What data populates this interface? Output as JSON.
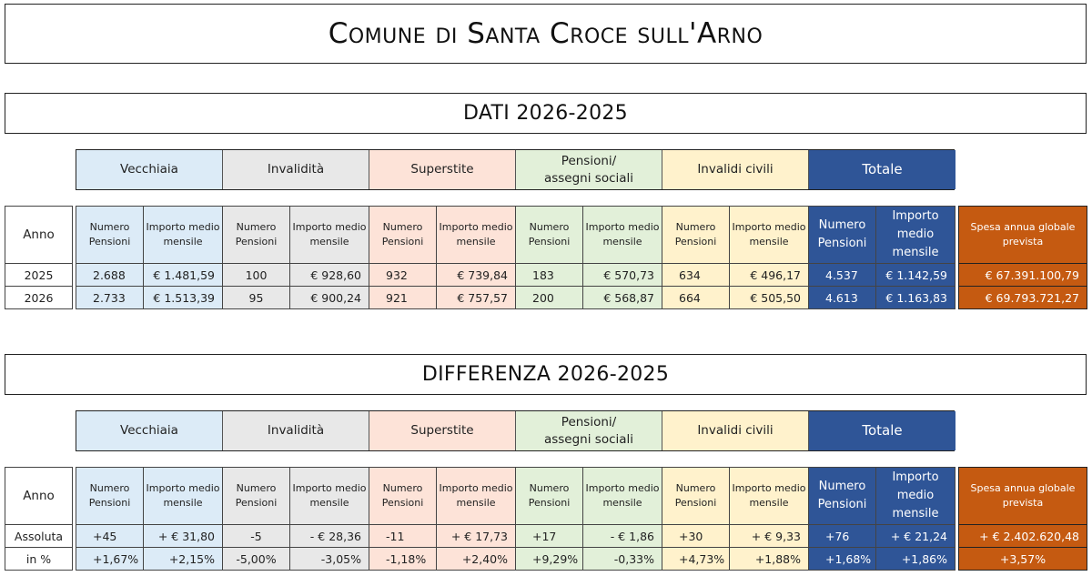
{
  "title": "Comune di Santa Croce sull'Arno",
  "sections": [
    {
      "title": "DATI 2026-2025",
      "categories": [
        "Vecchiaia",
        "Invalidità",
        "Superstite",
        "Pensioni/ assegni sociali",
        "Invalidi civili",
        "Totale"
      ],
      "headers": {
        "anno": "Anno",
        "numero": "Numero Pensioni",
        "importo": "Importo medio mensile",
        "spesa": "Spesa annua globale prevista"
      },
      "rows": [
        {
          "label": "2025",
          "values": [
            "2.688",
            "€ 1.481,59",
            "100",
            "€ 928,60",
            "932",
            "€ 739,84",
            "183",
            "€ 570,73",
            "634",
            "€ 496,17",
            "4.537",
            "€ 1.142,59"
          ],
          "spesa": "€ 67.391.100,79"
        },
        {
          "label": "2026",
          "values": [
            "2.733",
            "€ 1.513,39",
            "95",
            "€ 900,24",
            "921",
            "€ 757,57",
            "200",
            "€ 568,87",
            "664",
            "€ 505,50",
            "4.613",
            "€ 1.163,83"
          ],
          "spesa": "€ 69.793.721,27"
        }
      ]
    },
    {
      "title": "DIFFERENZA 2026-2025",
      "categories": [
        "Vecchiaia",
        "Invalidità",
        "Superstite",
        "Pensioni/ assegni sociali",
        "Invalidi civili",
        "Totale"
      ],
      "headers": {
        "anno": "Anno",
        "numero": "Numero Pensioni",
        "importo": "Importo medio mensile",
        "spesa": "Spesa annua globale prevista"
      },
      "rows": [
        {
          "label": "Assoluta",
          "values": [
            "+45",
            "+ € 31,80",
            "-5",
            "- € 28,36",
            "-11",
            "+ € 17,73",
            "+17",
            "- € 1,86",
            "+30",
            "+ € 9,33",
            "+76",
            "+ € 21,24"
          ],
          "spesa": "+ € 2.402.620,48"
        },
        {
          "label": "in %",
          "values": [
            "+1,67%",
            "+2,15%",
            "-5,00%",
            "-3,05%",
            "-1,18%",
            "+2,40%",
            "+9,29%",
            "-0,33%",
            "+4,73%",
            "+1,88%",
            "+1,68%",
            "+1,86%"
          ],
          "spesa": "+3,57%"
        }
      ]
    }
  ]
}
